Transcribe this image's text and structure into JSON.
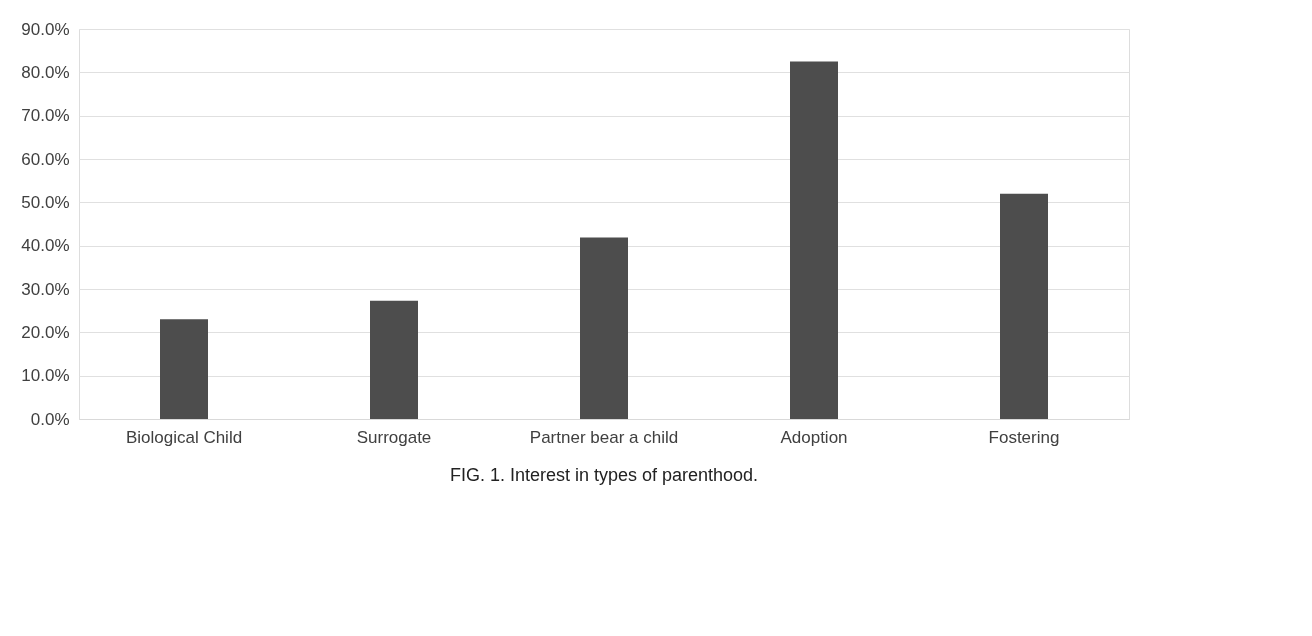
{
  "chart_data": {
    "type": "bar",
    "categories": [
      "Biological Child",
      "Surrogate",
      "Partner bear a child",
      "Adoption",
      "Fostering"
    ],
    "values": [
      23.0,
      27.3,
      41.9,
      82.5,
      52.0
    ],
    "color": "#4d4d4d",
    "ylim": [
      0,
      90
    ],
    "yticks": [
      {
        "value": 0,
        "label": "0.0%"
      },
      {
        "value": 10,
        "label": "10.0%"
      },
      {
        "value": 20,
        "label": "20.0%"
      },
      {
        "value": 30,
        "label": "30.0%"
      },
      {
        "value": 40,
        "label": "40.0%"
      },
      {
        "value": 50,
        "label": "50.0%"
      },
      {
        "value": 60,
        "label": "60.0%"
      },
      {
        "value": 70,
        "label": "70.0%"
      },
      {
        "value": 80,
        "label": "80.0%"
      },
      {
        "value": 90,
        "label": "90.0%"
      }
    ],
    "grid": "y",
    "annotations": [
      "FIG. 1.  Interest in types of parenthood."
    ]
  }
}
